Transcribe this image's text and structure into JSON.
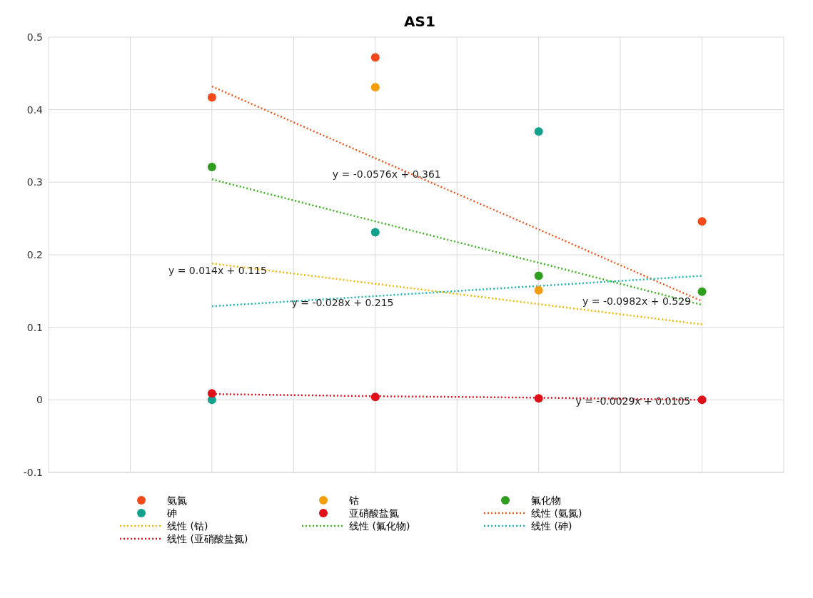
{
  "chart_data": {
    "type": "scatter",
    "title": "AS1",
    "categories": [
      null,
      null,
      null,
      null
    ],
    "ylim": [
      -0.1,
      0.5
    ],
    "yticks": [
      -0.1,
      0,
      0.1,
      0.2,
      0.3,
      0.4,
      0.5
    ],
    "grid": true,
    "legend": "bottom",
    "series": [
      {
        "name": "氨氮",
        "marker": "circle",
        "color": "#f04a1a",
        "values": [
          0.417,
          0.472,
          null,
          0.246
        ]
      },
      {
        "name": "钴",
        "marker": "circle",
        "color": "#f59d0b",
        "values": [
          null,
          0.431,
          0.151,
          null
        ]
      },
      {
        "name": "氟化物",
        "marker": "circle",
        "color": "#2f9e1e",
        "values": [
          0.321,
          null,
          0.171,
          0.149
        ]
      },
      {
        "name": "砷",
        "marker": "circle",
        "color": "#12a08f",
        "values": [
          0,
          0.231,
          0.37,
          null
        ]
      },
      {
        "name": "亚硝酸盐氮",
        "marker": "circle",
        "color": "#e0101a",
        "values": [
          0.009,
          0.004,
          0.002,
          0
        ]
      },
      {
        "name": "线性 (氨氮)",
        "type": "line",
        "line_style": "dotted",
        "color": "#f0581e",
        "values": [
          0.432,
          0.333,
          0.235,
          0.136
        ]
      },
      {
        "name": "线性 (钴)",
        "type": "line",
        "line_style": "dotted",
        "color": "#f5b800",
        "values": [
          0.188,
          0.16,
          0.132,
          0.104
        ]
      },
      {
        "name": "线性 (氟化物)",
        "type": "line",
        "line_style": "dotted",
        "color": "#3cb521",
        "values": [
          0.304,
          0.246,
          0.189,
          0.131
        ]
      },
      {
        "name": "线性 (砷)",
        "type": "line",
        "line_style": "dotted",
        "color": "#1ab6b0",
        "values": [
          0.129,
          0.143,
          0.157,
          0.171
        ]
      },
      {
        "name": "线性 (亚硝酸盐氮)",
        "type": "line",
        "line_style": "dotted",
        "color": "#e8101e",
        "values": [
          0.008,
          0.005,
          0.003,
          0
        ]
      }
    ],
    "annotations": [
      "y = -0.0576x + 0.361",
      "y = 0.014x + 0.115",
      "y = -0.028x + 0.215",
      "y = -0.0982x + 0.529",
      "y = -0.0029x + 0.0105"
    ]
  }
}
